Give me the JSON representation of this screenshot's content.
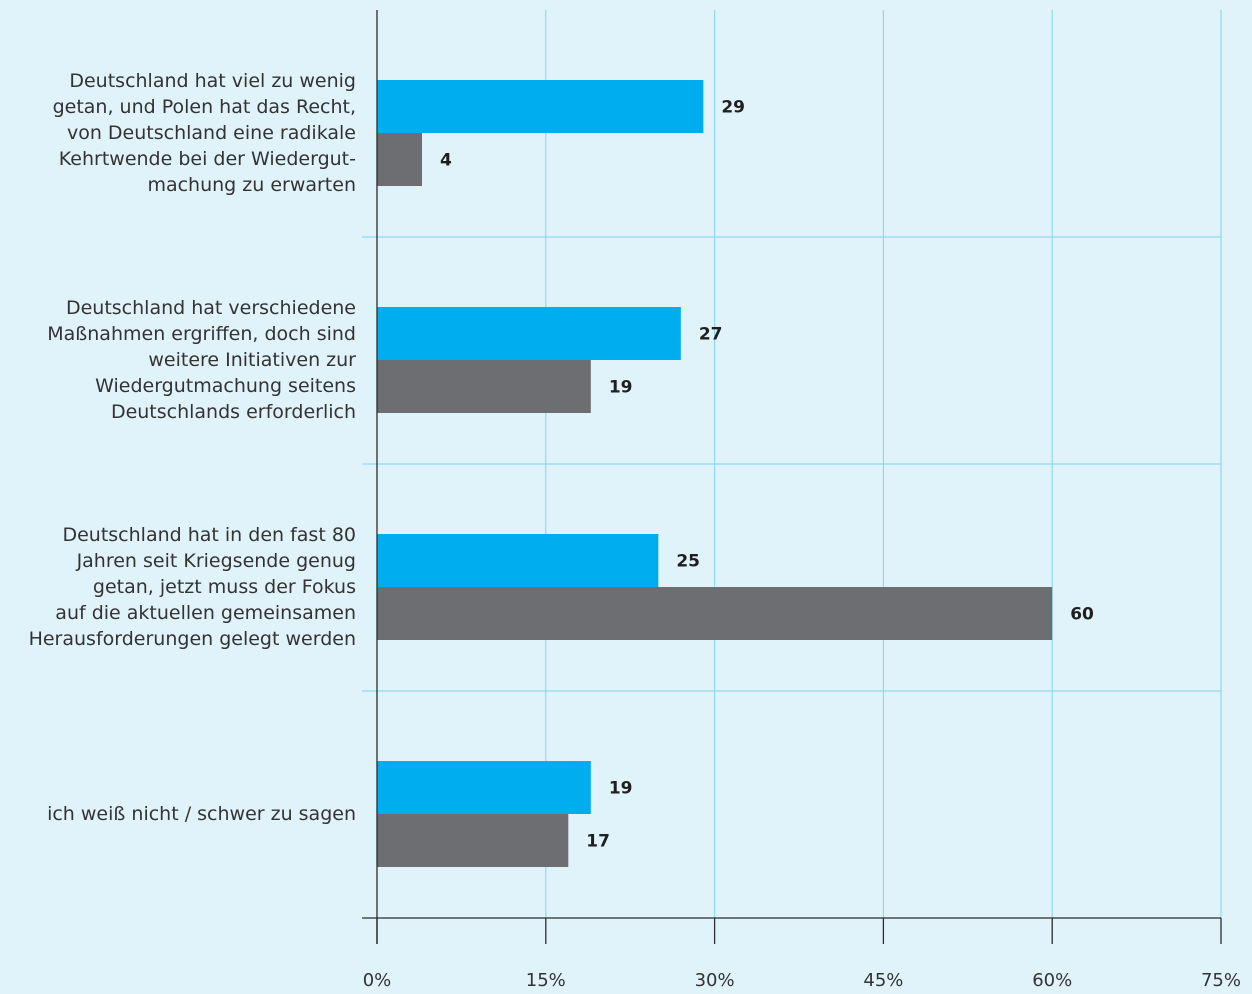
{
  "chart_data": {
    "type": "bar",
    "orientation": "horizontal",
    "categories": [
      "Deutschland hat viel zu wenig\ngetan, und Polen hat das Recht,\nvon Deutschland eine radikale\nKehrtwende bei der Wiedergut-\nmachung zu erwarten",
      "Deutschland hat verschiedene\nMaßnahmen ergriffen, doch sind\nweitere Initiativen zur\nWiedergutmachung seitens\nDeutschlands erforderlich",
      "Deutschland hat in den fast 80\nJahren seit Kriegsende genug\ngetan, jetzt muss der Fokus\nauf die aktuellen gemeinsamen\nHerausforderungen gelegt werden",
      "ich weiß nicht / schwer zu sagen"
    ],
    "series": [
      {
        "values": [
          29,
          27,
          25,
          19
        ],
        "color": "#00aeef"
      },
      {
        "values": [
          4,
          19,
          60,
          17
        ],
        "color": "#6d6e71"
      }
    ],
    "value_labels": [
      [
        "29",
        "27",
        "25",
        "19"
      ],
      [
        "4",
        "19",
        "60",
        "17"
      ]
    ],
    "xlim": [
      0,
      75
    ],
    "x_ticks": [
      0,
      15,
      30,
      45,
      60,
      75
    ],
    "x_tick_labels": [
      "0%",
      "15%",
      "30%",
      "45%",
      "60%",
      "75%"
    ],
    "grid": true,
    "legend": "none"
  }
}
